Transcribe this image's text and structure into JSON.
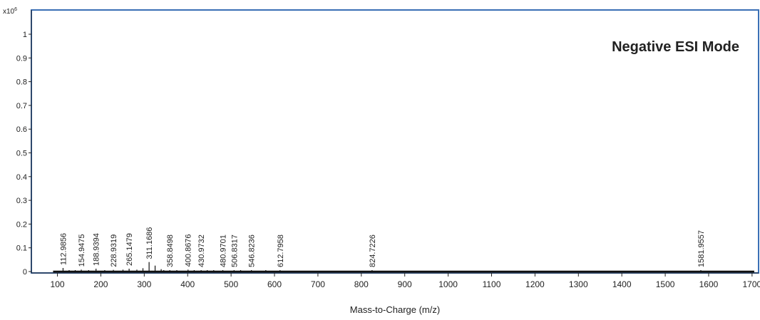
{
  "chart_data": {
    "type": "bar",
    "title": "Negative ESI Mode",
    "xlabel": "Mass-to-Charge (m/z)",
    "ylabel": "",
    "y_multiplier": "x10",
    "y_multiplier_exp": "6",
    "xlim": [
      40,
      1715
    ],
    "ylim": [
      0,
      1.1
    ],
    "x_ticks": [
      "100",
      "200",
      "300",
      "400",
      "500",
      "600",
      "700",
      "800",
      "900",
      "1000",
      "1100",
      "1200",
      "1300",
      "1400",
      "1500",
      "1600",
      "1700"
    ],
    "y_ticks": [
      "0",
      "0.1",
      "0.2",
      "0.3",
      "0.4",
      "0.5",
      "0.6",
      "0.7",
      "0.8",
      "0.9",
      "1"
    ],
    "grid": false,
    "peaks": [
      {
        "mz": 112.9856,
        "intensity": 0.015,
        "label": "112.9856"
      },
      {
        "mz": 154.9475,
        "intensity": 0.008,
        "label": "154.9475"
      },
      {
        "mz": 188.9394,
        "intensity": 0.012,
        "label": "188.9394"
      },
      {
        "mz": 228.9319,
        "intensity": 0.007,
        "label": "228.9319"
      },
      {
        "mz": 265.1479,
        "intensity": 0.012,
        "label": "265.1479"
      },
      {
        "mz": 311.1686,
        "intensity": 0.04,
        "label": "311.1686"
      },
      {
        "mz": 358.8498,
        "intensity": 0.006,
        "label": "358.8498"
      },
      {
        "mz": 400.8676,
        "intensity": 0.008,
        "label": "400.8676"
      },
      {
        "mz": 430.9732,
        "intensity": 0.006,
        "label": "430.9732"
      },
      {
        "mz": 480.9701,
        "intensity": 0.006,
        "label": "480.9701"
      },
      {
        "mz": 506.8317,
        "intensity": 0.005,
        "label": "506.8317"
      },
      {
        "mz": 546.8236,
        "intensity": 0.004,
        "label": "546.8236"
      },
      {
        "mz": 612.7958,
        "intensity": 0.004,
        "label": "612.7958"
      },
      {
        "mz": 824.7226,
        "intensity": 0.004,
        "label": "824.7226"
      },
      {
        "mz": 1581.9557,
        "intensity": 0.004,
        "label": "1581.9557"
      },
      {
        "mz": 127.0,
        "intensity": 0.006,
        "label": ""
      },
      {
        "mz": 141.0,
        "intensity": 0.005,
        "label": ""
      },
      {
        "mz": 172.0,
        "intensity": 0.005,
        "label": ""
      },
      {
        "mz": 209.0,
        "intensity": 0.004,
        "label": ""
      },
      {
        "mz": 251.0,
        "intensity": 0.008,
        "label": ""
      },
      {
        "mz": 283.0,
        "intensity": 0.008,
        "label": ""
      },
      {
        "mz": 297.0,
        "intensity": 0.014,
        "label": ""
      },
      {
        "mz": 325.0,
        "intensity": 0.025,
        "label": ""
      },
      {
        "mz": 339.0,
        "intensity": 0.01,
        "label": ""
      },
      {
        "mz": 345.0,
        "intensity": 0.006,
        "label": ""
      },
      {
        "mz": 375.0,
        "intensity": 0.005,
        "label": ""
      },
      {
        "mz": 415.0,
        "intensity": 0.005,
        "label": ""
      },
      {
        "mz": 445.0,
        "intensity": 0.004,
        "label": ""
      },
      {
        "mz": 460.0,
        "intensity": 0.004,
        "label": ""
      },
      {
        "mz": 522.0,
        "intensity": 0.003,
        "label": ""
      },
      {
        "mz": 580.0,
        "intensity": 0.003,
        "label": ""
      }
    ],
    "colors": {
      "frame": "#3a6fb5",
      "peak": "#1a1a1a",
      "text": "#222222"
    }
  }
}
